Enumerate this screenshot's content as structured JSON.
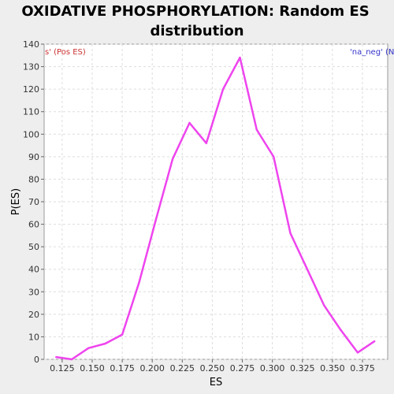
{
  "chart_data": {
    "type": "line",
    "title_lines": [
      "OXIDATIVE PHOSPHORYLATION: Random ES",
      "distribution"
    ],
    "xlabel": "ES",
    "ylabel": "P(ES)",
    "xlim": [
      0.11,
      0.396
    ],
    "ylim": [
      0,
      140
    ],
    "xticks": [
      "0.125",
      "0.150",
      "0.175",
      "0.200",
      "0.225",
      "0.250",
      "0.275",
      "0.300",
      "0.325",
      "0.350",
      "0.375"
    ],
    "yticks": [
      "0",
      "10",
      "20",
      "30",
      "40",
      "50",
      "60",
      "70",
      "80",
      "90",
      "100",
      "110",
      "120",
      "130",
      "140"
    ],
    "grid": true,
    "series": [
      {
        "color": "#ee44ee",
        "x": [
          0.12,
          0.133,
          0.147,
          0.161,
          0.175,
          0.189,
          0.203,
          0.217,
          0.231,
          0.245,
          0.259,
          0.273,
          0.287,
          0.301,
          0.315,
          0.329,
          0.343,
          0.357,
          0.371,
          0.385
        ],
        "y": [
          1,
          0,
          5,
          7,
          11,
          34,
          62,
          89,
          105,
          96,
          120,
          134,
          102,
          90,
          56,
          40,
          24,
          13,
          3,
          8
        ]
      }
    ],
    "legend_left": "s' (Pos ES)",
    "legend_right": "'na_neg' (N",
    "legend_left_color": "#cc3333",
    "legend_right_color": "#3333cc"
  }
}
